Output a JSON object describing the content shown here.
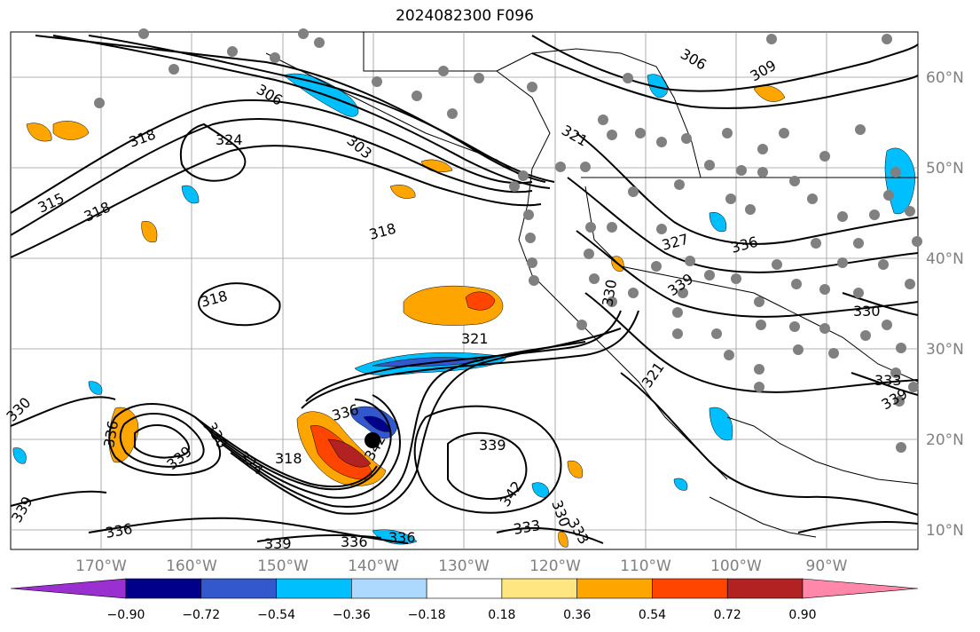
{
  "title": "2024082300 F096",
  "lat_labels": [
    "60°N",
    "50°N",
    "40°N",
    "30°N",
    "20°N",
    "10°N"
  ],
  "lon_labels": [
    "170°W",
    "160°W",
    "150°W",
    "140°W",
    "130°W",
    "120°W",
    "110°W",
    "100°W",
    "90°W"
  ],
  "colorbar": {
    "ticks": [
      "−0.90",
      "−0.72",
      "−0.54",
      "−0.36",
      "−0.18",
      "0.18",
      "0.36",
      "0.54",
      "0.72",
      "0.90"
    ],
    "colors": [
      "#9b30d0",
      "#00008b",
      "#3357cc",
      "#00bfff",
      "#add8ff",
      "#ffffff",
      "#ffe680",
      "#ffa500",
      "#ff4500",
      "#b22222",
      "#ff88aa"
    ]
  },
  "contour_labels": [
    "306",
    "309",
    "306",
    "303",
    "318",
    "324",
    "315",
    "318",
    "321",
    "318",
    "321",
    "327",
    "336",
    "339",
    "330",
    "318",
    "321",
    "330",
    "342",
    "330",
    "333",
    "336",
    "339",
    "318",
    "324",
    "330",
    "336",
    "339",
    "342",
    "336",
    "339",
    "333",
    "336",
    "330",
    "339",
    "336",
    "339",
    "333"
  ]
}
